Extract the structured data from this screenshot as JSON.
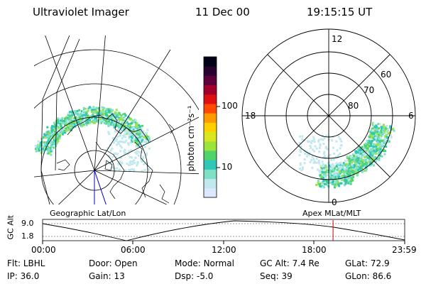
{
  "header": {
    "instrument": "Ultraviolet Imager",
    "date": "11 Dec 00",
    "time": "19:15:15 UT"
  },
  "geo_panel": {
    "label": "Geographic Lat/Lon"
  },
  "mlt_panel": {
    "label": "Apex MLat/MLT",
    "mlt_labels": {
      "top": "12",
      "bottom": "0",
      "left": "18",
      "right": "6"
    },
    "lat_labels": [
      "60",
      "70",
      "80"
    ]
  },
  "colorbar": {
    "unit": "photon cm⁻²s⁻¹",
    "ticks": [
      "100",
      "10"
    ],
    "colors": [
      "#dde8ff",
      "#c0e8ee",
      "#7fe0c8",
      "#2ec6b6",
      "#4fd36b",
      "#9be43a",
      "#d9e61e",
      "#ffd000",
      "#ff9a00",
      "#ff4a00",
      "#e01010",
      "#a0002a",
      "#60003a",
      "#2a0030",
      "#000018"
    ]
  },
  "altitude_plot": {
    "y_label": "GC Alt",
    "y_ticks": [
      "9.0",
      "1.8"
    ],
    "x_ticks": [
      "00:00",
      "06:00",
      "12:00",
      "18:00",
      "23:59"
    ],
    "marker_hour": 19.25
  },
  "info": {
    "row1": [
      {
        "key": "Flt:",
        "value": "LBHL"
      },
      {
        "key": "Door:",
        "value": "Open"
      },
      {
        "key": "Mode:",
        "value": "Normal"
      },
      {
        "key": "GC Alt:",
        "value": "7.4 Re"
      },
      {
        "key": "GLat:",
        "value": "72.9"
      }
    ],
    "row2": [
      {
        "key": "IP:",
        "value": "36.0"
      },
      {
        "key": "Gain:",
        "value": "13"
      },
      {
        "key": "Dsp:",
        "value": "-5.0"
      },
      {
        "key": "Seq:",
        "value": "39"
      },
      {
        "key": "GLon:",
        "value": "86.6"
      }
    ]
  }
}
